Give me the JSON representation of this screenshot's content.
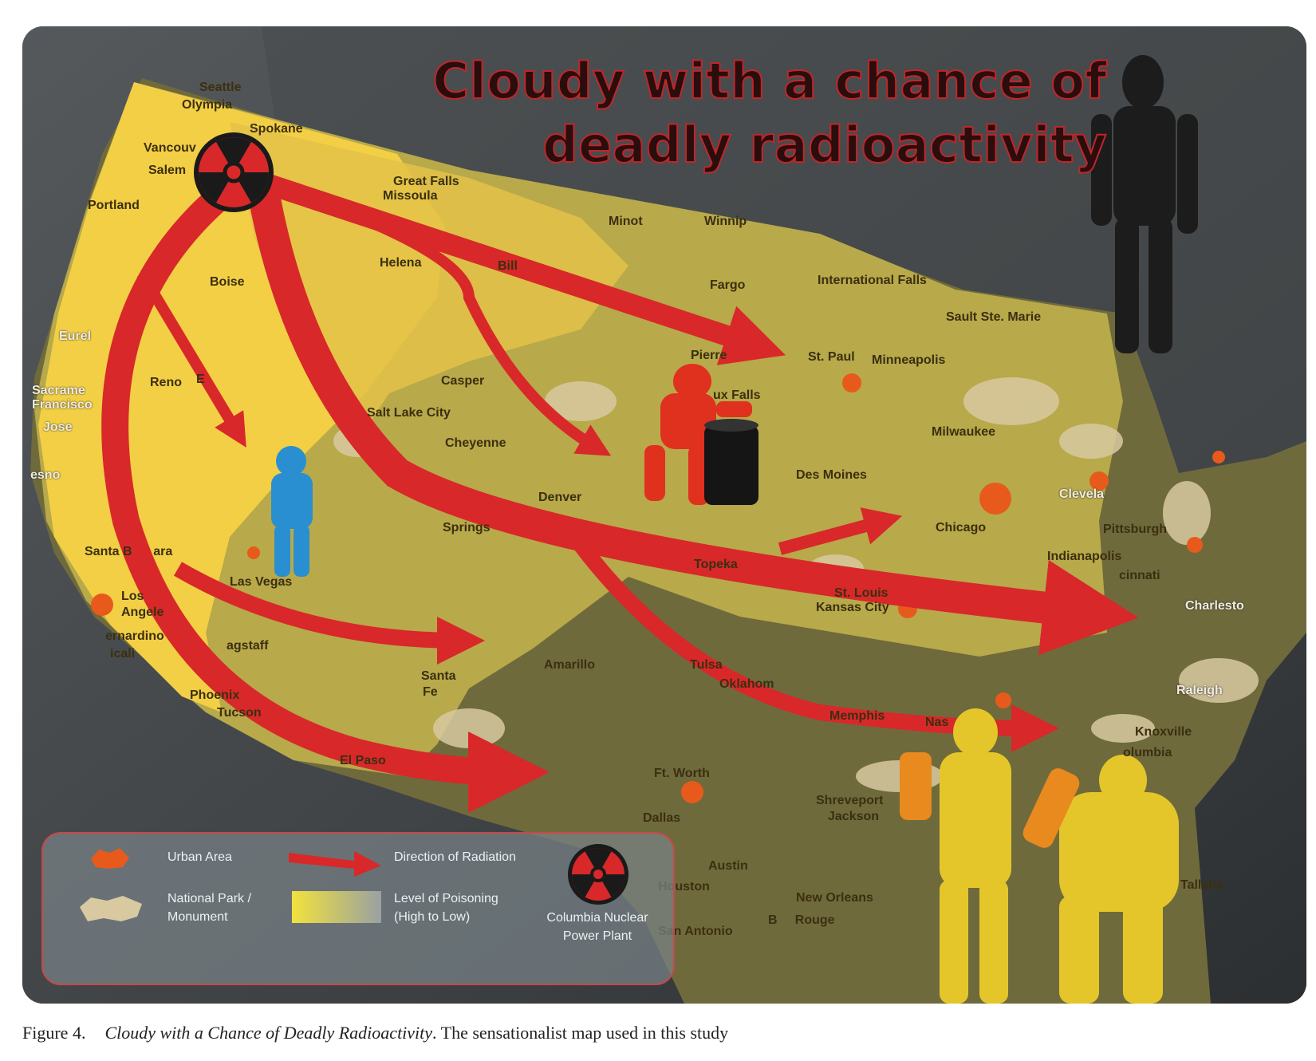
{
  "title": {
    "line1": "Cloudy with a chance of",
    "line2": "deadly radioactivity"
  },
  "cities": {
    "seattle": "Seattle",
    "olympia": "Olympia",
    "spokane": "Spokane",
    "vancouver": "Vancouv",
    "salem": "Salem",
    "portland": "Portland",
    "great_falls": "Great Falls",
    "missoula": "Missoula",
    "minot": "Minot",
    "winnipeg": "Winnip",
    "helena": "Helena",
    "billings": "Bill",
    "boise": "Boise",
    "fargo": "Fargo",
    "international_falls": "International Falls",
    "sault_ste_marie": "Sault Ste. Marie",
    "eureka": "Eurel",
    "pierre": "Pierre",
    "st_paul": "St. Paul",
    "minneapolis": "Minneapolis",
    "reno": "Reno",
    "elko": "E",
    "casper": "Casper",
    "sioux_falls": "ux Falls",
    "sacramento": "Sacrame",
    "san_francisco": "Francisco",
    "san_jose": "Jose",
    "salt_lake_city": "Salt Lake City",
    "milwaukee": "Milwaukee",
    "cheyenne": "Cheyenne",
    "fresno": "esno",
    "des_moines": "Des Moines",
    "denver": "Denver",
    "cleveland": "Clevela",
    "chicago": "Chicago",
    "springs": "Springs",
    "pittsburgh": "Pittsburgh",
    "santa_barbara": "Santa B      ara",
    "indianapolis": "Indianapolis",
    "topeka": "Topeka",
    "cincinnati": "cinnati",
    "las_vegas": "Las Vegas",
    "charleston": "Charlesto",
    "los_angeles_1": "Los",
    "los_angeles_2": "Angele",
    "st_louis": "St. Louis",
    "kansas_city": "Kansas City",
    "san_bernardino": "ernardino",
    "mexicali": "icali",
    "flagstaff": "agstaff",
    "amarillo": "Amarillo",
    "tulsa": "Tulsa",
    "santa_fe_1": "Santa",
    "santa_fe_2": "Fe",
    "oklahoma": "Oklahom",
    "raleigh": "Raleigh",
    "phoenix": "Phoenix",
    "tucson": "Tucson",
    "memphis": "Memphis",
    "nashville": "Nas",
    "knoxville": "Knoxville",
    "columbia": "olumbia",
    "el_paso": "El Paso",
    "ft_worth": "Ft. Worth",
    "shreveport": "Shreveport",
    "jackson": "Jackson",
    "dallas": "Dallas",
    "austin": "Austin",
    "houston": "Houston",
    "new_orleans": "New Orleans",
    "tallahassee": "Tallaha",
    "san_antonio": "San Antonio",
    "baton_rouge": "B     Rouge"
  },
  "legend": {
    "urban_area": "Urban Area",
    "direction": "Direction of Radiation",
    "plant_1": "Columbia Nuclear",
    "plant_2": "Power Plant",
    "park_1": "National Park /",
    "park_2": "Monument",
    "poison_1": "Level of Poisoning",
    "poison_2": "(High to Low)"
  },
  "caption": {
    "number": "Figure 4.",
    "title": "Cloudy with a Chance of Deadly Radioactivity",
    "rest": ". The sensationalist map used in this study"
  },
  "colors": {
    "arrow": "#d8282a",
    "poison_high": "#f5d44a",
    "poison_low": "#8e8a55",
    "urban": "#e85a1c",
    "park": "#d8c9a0"
  }
}
